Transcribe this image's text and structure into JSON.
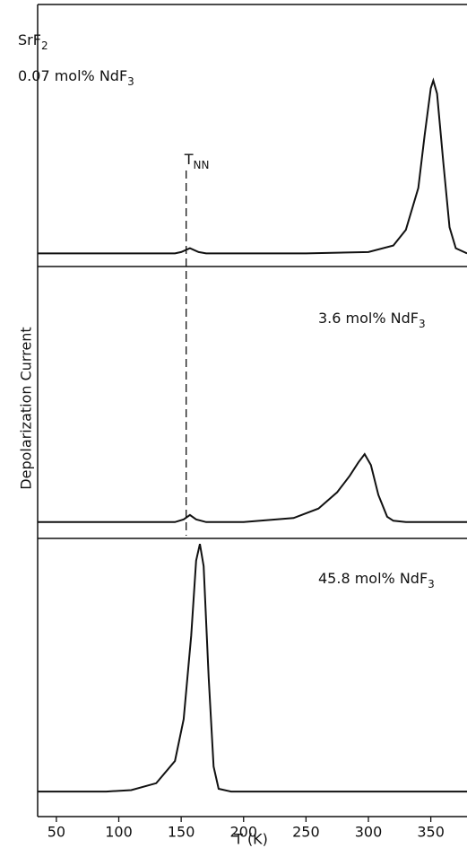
{
  "chart_data": {
    "type": "line",
    "xlabel": "T (K)",
    "ylabel": "Depolarization Current",
    "xlim": [
      35,
      379
    ],
    "xticks": [
      50,
      100,
      150,
      200,
      250,
      300,
      350
    ],
    "ylim": [
      0,
      100
    ],
    "color": "#111111",
    "marker": {
      "x": 154,
      "text": "T",
      "sub": "NN"
    },
    "panels": [
      {
        "x": [
          35,
          100,
          145,
          150,
          157,
          164,
          170,
          250,
          300,
          320,
          330,
          340,
          345,
          350,
          352,
          355,
          360,
          365,
          370,
          379
        ],
        "values": [
          5,
          5,
          5,
          5.5,
          7,
          5.5,
          5,
          5,
          5.5,
          8,
          14,
          30,
          50,
          68,
          71,
          66,
          40,
          15,
          7,
          5
        ],
        "labels": [
          {
            "text": "SrF",
            "sub": "2"
          },
          {
            "text": "0.07 mol% NdF",
            "sub": "3"
          }
        ]
      },
      {
        "x": [
          35,
          100,
          145,
          152,
          157,
          162,
          170,
          200,
          240,
          260,
          275,
          285,
          292,
          297,
          302,
          308,
          315,
          320,
          330,
          379
        ],
        "values": [
          6,
          6,
          6,
          7,
          8.6,
          7,
          6,
          6,
          7.5,
          11,
          17,
          23,
          28,
          31,
          27,
          16,
          8,
          6.5,
          6,
          6
        ],
        "labels": [
          {
            "text": "3.6 mol% NdF",
            "sub": "3"
          }
        ]
      },
      {
        "x": [
          35,
          90,
          110,
          130,
          145,
          152,
          158,
          162,
          165,
          168,
          172,
          176,
          180,
          190,
          250,
          379
        ],
        "values": [
          9,
          9,
          9.5,
          12,
          20,
          35,
          65,
          92,
          98,
          90,
          50,
          18,
          10,
          9,
          9,
          9
        ],
        "labels": [
          {
            "text": "45.8 mol% NdF",
            "sub": "3"
          }
        ]
      }
    ]
  }
}
